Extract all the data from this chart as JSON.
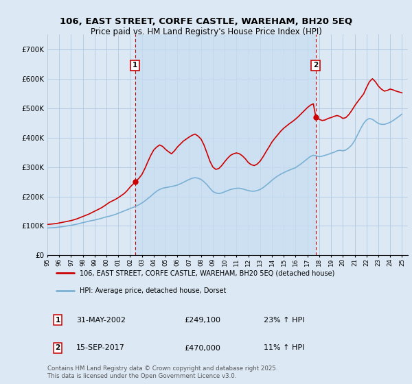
{
  "title": "106, EAST STREET, CORFE CASTLE, WAREHAM, BH20 5EQ",
  "subtitle": "Price paid vs. HM Land Registry's House Price Index (HPI)",
  "ylabel_ticks": [
    "£0",
    "£100K",
    "£200K",
    "£300K",
    "£400K",
    "£500K",
    "£600K",
    "£700K"
  ],
  "ylim": [
    0,
    750000
  ],
  "xlim_start": 1995.0,
  "xlim_end": 2025.5,
  "sale1_date": "31-MAY-2002",
  "sale1_price": 249100,
  "sale1_pct": "23% ↑ HPI",
  "sale2_date": "15-SEP-2017",
  "sale2_price": 470000,
  "sale2_pct": "11% ↑ HPI",
  "sale1_x": 2002.42,
  "sale1_y": 249100,
  "sale2_x": 2017.71,
  "sale2_y": 470000,
  "legend_label1": "106, EAST STREET, CORFE CASTLE, WAREHAM, BH20 5EQ (detached house)",
  "legend_label2": "HPI: Average price, detached house, Dorset",
  "footer": "Contains HM Land Registry data © Crown copyright and database right 2025.\nThis data is licensed under the Open Government Licence v3.0.",
  "red_color": "#cc0000",
  "blue_color": "#7ab0d4",
  "background_color": "#dce9f5",
  "plot_bg": "#dce9f5",
  "grid_color": "#b0c8e0",
  "annotation_box_color": "#cc0000",
  "highlight_bg": "#c8ddf0",
  "hpi_line": {
    "x": [
      1995.0,
      1995.25,
      1995.5,
      1995.75,
      1996.0,
      1996.25,
      1996.5,
      1996.75,
      1997.0,
      1997.25,
      1997.5,
      1997.75,
      1998.0,
      1998.25,
      1998.5,
      1998.75,
      1999.0,
      1999.25,
      1999.5,
      1999.75,
      2000.0,
      2000.25,
      2000.5,
      2000.75,
      2001.0,
      2001.25,
      2001.5,
      2001.75,
      2002.0,
      2002.25,
      2002.5,
      2002.75,
      2003.0,
      2003.25,
      2003.5,
      2003.75,
      2004.0,
      2004.25,
      2004.5,
      2004.75,
      2005.0,
      2005.25,
      2005.5,
      2005.75,
      2006.0,
      2006.25,
      2006.5,
      2006.75,
      2007.0,
      2007.25,
      2007.5,
      2007.75,
      2008.0,
      2008.25,
      2008.5,
      2008.75,
      2009.0,
      2009.25,
      2009.5,
      2009.75,
      2010.0,
      2010.25,
      2010.5,
      2010.75,
      2011.0,
      2011.25,
      2011.5,
      2011.75,
      2012.0,
      2012.25,
      2012.5,
      2012.75,
      2013.0,
      2013.25,
      2013.5,
      2013.75,
      2014.0,
      2014.25,
      2014.5,
      2014.75,
      2015.0,
      2015.25,
      2015.5,
      2015.75,
      2016.0,
      2016.25,
      2016.5,
      2016.75,
      2017.0,
      2017.25,
      2017.5,
      2017.75,
      2018.0,
      2018.25,
      2018.5,
      2018.75,
      2019.0,
      2019.25,
      2019.5,
      2019.75,
      2020.0,
      2020.25,
      2020.5,
      2020.75,
      2021.0,
      2021.25,
      2021.5,
      2021.75,
      2022.0,
      2022.25,
      2022.5,
      2022.75,
      2023.0,
      2023.25,
      2023.5,
      2023.75,
      2024.0,
      2024.25,
      2024.5,
      2024.75,
      2025.0
    ],
    "y": [
      93000,
      93500,
      94000,
      94800,
      96000,
      97500,
      99000,
      100500,
      102000,
      104000,
      106000,
      108500,
      111000,
      113500,
      116000,
      118000,
      120000,
      122500,
      125000,
      128000,
      131000,
      133000,
      136000,
      139000,
      143000,
      147000,
      151000,
      155000,
      159000,
      163000,
      167000,
      172000,
      178000,
      185000,
      193000,
      201000,
      210000,
      218000,
      224000,
      228000,
      230000,
      232000,
      234000,
      236000,
      239000,
      243000,
      248000,
      253000,
      258000,
      262000,
      264000,
      262000,
      258000,
      250000,
      240000,
      228000,
      217000,
      212000,
      210000,
      212000,
      216000,
      220000,
      224000,
      226000,
      228000,
      228000,
      226000,
      223000,
      220000,
      218000,
      218000,
      220000,
      224000,
      230000,
      238000,
      246000,
      255000,
      263000,
      270000,
      276000,
      281000,
      286000,
      290000,
      294000,
      298000,
      305000,
      312000,
      320000,
      328000,
      336000,
      340000,
      338000,
      335000,
      337000,
      340000,
      343000,
      347000,
      350000,
      355000,
      357000,
      355000,
      358000,
      365000,
      375000,
      390000,
      410000,
      430000,
      448000,
      460000,
      465000,
      462000,
      455000,
      448000,
      445000,
      445000,
      448000,
      452000,
      458000,
      465000,
      472000,
      480000
    ]
  },
  "price_line": {
    "x": [
      1995.0,
      1995.25,
      1995.5,
      1995.75,
      1996.0,
      1996.25,
      1996.5,
      1996.75,
      1997.0,
      1997.25,
      1997.5,
      1997.75,
      1998.0,
      1998.25,
      1998.5,
      1998.75,
      1999.0,
      1999.25,
      1999.5,
      1999.75,
      2000.0,
      2000.25,
      2000.5,
      2000.75,
      2001.0,
      2001.25,
      2001.5,
      2001.75,
      2002.0,
      2002.25,
      2002.42,
      2002.5,
      2002.75,
      2003.0,
      2003.25,
      2003.5,
      2003.75,
      2004.0,
      2004.25,
      2004.5,
      2004.75,
      2005.0,
      2005.25,
      2005.5,
      2005.75,
      2006.0,
      2006.25,
      2006.5,
      2006.75,
      2007.0,
      2007.25,
      2007.5,
      2007.75,
      2008.0,
      2008.25,
      2008.5,
      2008.75,
      2009.0,
      2009.25,
      2009.5,
      2009.75,
      2010.0,
      2010.25,
      2010.5,
      2010.75,
      2011.0,
      2011.25,
      2011.5,
      2011.75,
      2012.0,
      2012.25,
      2012.5,
      2012.75,
      2013.0,
      2013.25,
      2013.5,
      2013.75,
      2014.0,
      2014.25,
      2014.5,
      2014.75,
      2015.0,
      2015.25,
      2015.5,
      2015.75,
      2016.0,
      2016.25,
      2016.5,
      2016.75,
      2017.0,
      2017.25,
      2017.5,
      2017.71,
      2017.75,
      2018.0,
      2018.25,
      2018.5,
      2018.75,
      2019.0,
      2019.25,
      2019.5,
      2019.75,
      2020.0,
      2020.25,
      2020.5,
      2020.75,
      2021.0,
      2021.25,
      2021.5,
      2021.75,
      2022.0,
      2022.25,
      2022.5,
      2022.75,
      2023.0,
      2023.25,
      2023.5,
      2023.75,
      2024.0,
      2024.25,
      2024.5,
      2024.75,
      2025.0
    ],
    "y": [
      105000,
      106000,
      107000,
      108000,
      110000,
      112000,
      114000,
      116000,
      118000,
      121000,
      124000,
      128000,
      132000,
      136000,
      140000,
      145000,
      150000,
      155000,
      160000,
      166000,
      173000,
      180000,
      185000,
      190000,
      196000,
      203000,
      210000,
      220000,
      232000,
      242000,
      249100,
      252000,
      262000,
      275000,
      295000,
      318000,
      340000,
      358000,
      368000,
      375000,
      370000,
      360000,
      352000,
      345000,
      355000,
      368000,
      378000,
      388000,
      395000,
      402000,
      408000,
      412000,
      405000,
      395000,
      375000,
      348000,
      320000,
      300000,
      292000,
      295000,
      305000,
      318000,
      330000,
      340000,
      345000,
      348000,
      345000,
      338000,
      328000,
      315000,
      308000,
      305000,
      310000,
      320000,
      335000,
      352000,
      368000,
      385000,
      398000,
      410000,
      422000,
      432000,
      440000,
      448000,
      455000,
      463000,
      472000,
      482000,
      492000,
      502000,
      510000,
      515000,
      470000,
      468000,
      462000,
      458000,
      460000,
      465000,
      468000,
      472000,
      475000,
      472000,
      465000,
      468000,
      478000,
      492000,
      508000,
      522000,
      535000,
      548000,
      570000,
      590000,
      600000,
      590000,
      575000,
      565000,
      558000,
      560000,
      565000,
      562000,
      558000,
      555000,
      552000
    ]
  }
}
